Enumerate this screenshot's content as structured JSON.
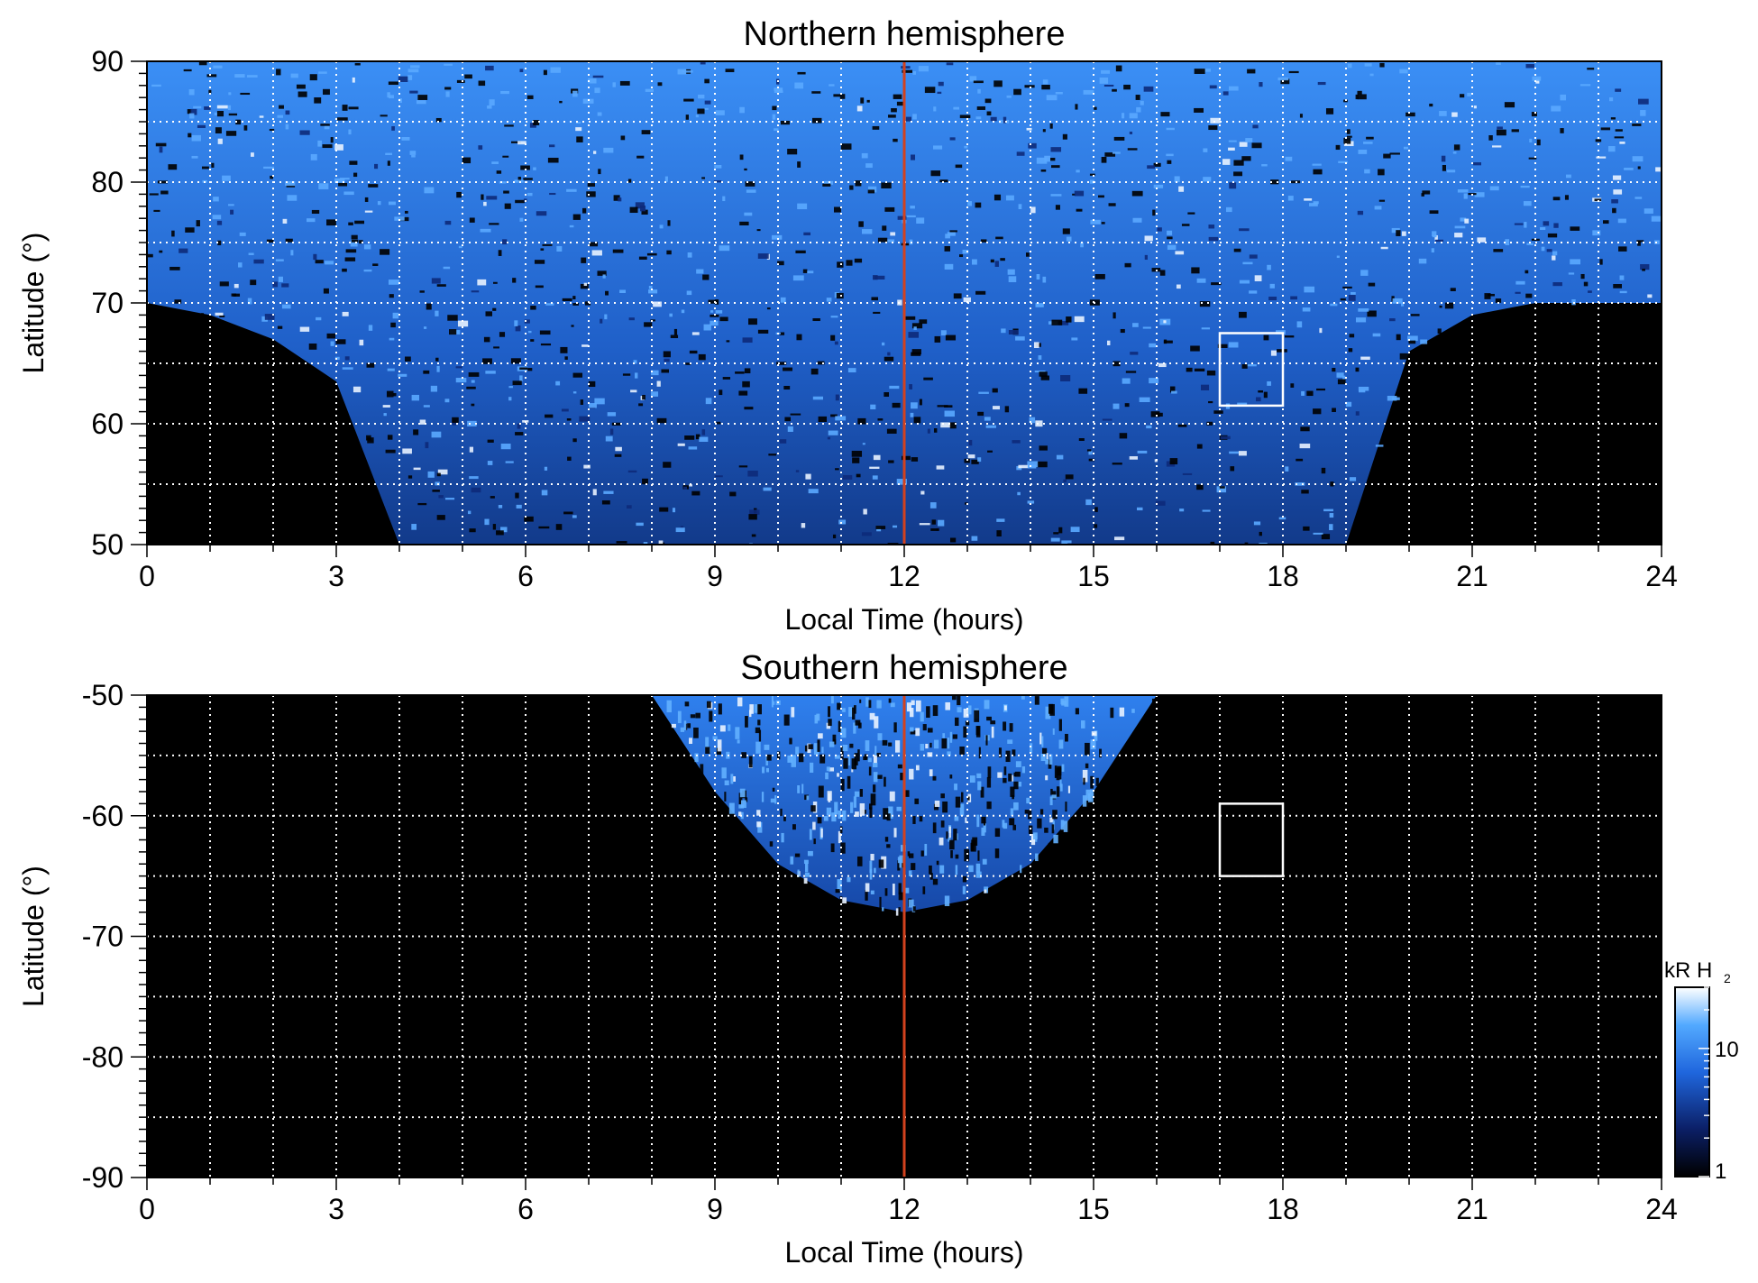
{
  "chart_data": [
    {
      "type": "heatmap",
      "title": "Northern hemisphere",
      "xlabel": "Local Time (hours)",
      "ylabel": "Latitude (°)",
      "xlim": [
        0,
        24
      ],
      "ylim": [
        50,
        90
      ],
      "x_ticks": [
        "0",
        "3",
        "6",
        "9",
        "12",
        "15",
        "18",
        "21",
        "24"
      ],
      "y_ticks": [
        "50",
        "60",
        "70",
        "80",
        "90"
      ],
      "grid": true,
      "reference_line": {
        "x": 12,
        "color": "#d2421e"
      },
      "box": {
        "x": [
          17,
          18
        ],
        "y": [
          61.5,
          67.5
        ]
      },
      "coverage_boundary": {
        "local_time": [
          0,
          1,
          2,
          3,
          4,
          5,
          6,
          7,
          8,
          9,
          10,
          11,
          12,
          13,
          14,
          15,
          16,
          17,
          18,
          19,
          20,
          21,
          22,
          23,
          24
        ],
        "min_latitude": [
          70,
          69,
          67,
          63.5,
          50,
          50,
          50,
          50,
          50,
          50,
          50,
          50,
          50,
          50,
          50,
          50,
          50,
          50,
          50,
          50,
          66,
          69,
          70,
          70,
          70
        ]
      }
    },
    {
      "type": "heatmap",
      "title": "Southern hemisphere",
      "xlabel": "Local Time (hours)",
      "ylabel": "Latitude (°)",
      "xlim": [
        0,
        24
      ],
      "ylim": [
        -90,
        -50
      ],
      "x_ticks": [
        "0",
        "3",
        "6",
        "9",
        "12",
        "15",
        "18",
        "21",
        "24"
      ],
      "y_ticks": [
        "-90",
        "-80",
        "-70",
        "-60",
        "-50"
      ],
      "grid": true,
      "reference_line": {
        "x": 12,
        "color": "#d2421e"
      },
      "box": {
        "x": [
          17,
          18
        ],
        "y": [
          -65,
          -59
        ]
      },
      "coverage_boundary": {
        "local_time": [
          8,
          9,
          10,
          11,
          12,
          13,
          14,
          15,
          16
        ],
        "max_latitude_extent": [
          -50,
          -58,
          -64,
          -67,
          -68,
          -67,
          -64,
          -58,
          -50
        ]
      }
    }
  ],
  "colorbar": {
    "unit_label": "kR H",
    "unit_subscript": "2",
    "ticks": [
      "1",
      "10"
    ],
    "scale": "log",
    "range": [
      1,
      30
    ],
    "colors": [
      "#000000",
      "#0b1f66",
      "#1f66dd",
      "#52a9ff",
      "#ffffff"
    ]
  },
  "colors": {
    "background": "#000000",
    "emission": "#2f86f0",
    "grid": "#ffffff",
    "reference_line": "#d2421e"
  }
}
